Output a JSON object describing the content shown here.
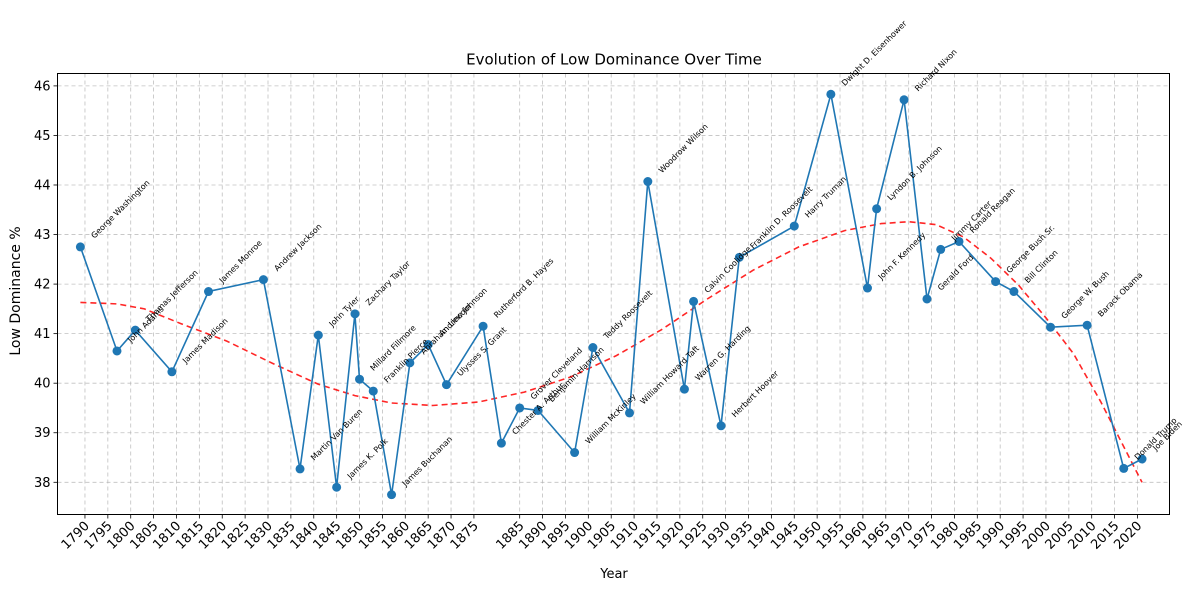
{
  "chart_data": {
    "type": "line",
    "title": "Evolution of  Low Dominance Over Time",
    "xlabel": "Year",
    "ylabel": "Low Dominance %",
    "xlim": [
      1784,
      2027
    ],
    "ylim": [
      37.35,
      46.25
    ],
    "xticks": [
      1790,
      1795,
      1800,
      1805,
      1810,
      1815,
      1820,
      1825,
      1830,
      1835,
      1840,
      1845,
      1850,
      1855,
      1860,
      1865,
      1870,
      1875,
      1885,
      1890,
      1895,
      1900,
      1905,
      1910,
      1915,
      1920,
      1925,
      1930,
      1935,
      1940,
      1945,
      1950,
      1955,
      1960,
      1965,
      1970,
      1975,
      1980,
      1985,
      1990,
      1995,
      2000,
      2005,
      2010,
      2015,
      2020
    ],
    "yticks": [
      38,
      39,
      40,
      41,
      42,
      43,
      44,
      45,
      46
    ],
    "grid": true,
    "series": [
      {
        "style": "line-markers",
        "color": "#1f77b4",
        "points": [
          {
            "x": 1789,
            "y": 42.75,
            "label": "George Washington"
          },
          {
            "x": 1797,
            "y": 40.65,
            "label": "John Adams"
          },
          {
            "x": 1801,
            "y": 41.07,
            "label": "Thomas Jefferson"
          },
          {
            "x": 1809,
            "y": 40.23,
            "label": "James Madison"
          },
          {
            "x": 1817,
            "y": 41.85,
            "label": "James Monroe"
          },
          {
            "x": 1829,
            "y": 42.09,
            "label": "Andrew Jackson"
          },
          {
            "x": 1837,
            "y": 38.27,
            "label": "Martin Van Buren"
          },
          {
            "x": 1841,
            "y": 40.97,
            "label": "John Tyler"
          },
          {
            "x": 1845,
            "y": 37.9,
            "label": "James K. Polk"
          },
          {
            "x": 1849,
            "y": 41.4,
            "label": "Zachary Taylor"
          },
          {
            "x": 1850,
            "y": 40.08,
            "label": "Millard Fillmore"
          },
          {
            "x": 1853,
            "y": 39.84,
            "label": "Franklin Pierce"
          },
          {
            "x": 1857,
            "y": 37.75,
            "label": "James Buchanan"
          },
          {
            "x": 1861,
            "y": 40.41,
            "label": "Abraham Lincoln"
          },
          {
            "x": 1865,
            "y": 40.78,
            "label": "Andrew Johnson"
          },
          {
            "x": 1869,
            "y": 39.97,
            "label": "Ulysses S. Grant"
          },
          {
            "x": 1877,
            "y": 41.15,
            "label": "Rutherford B. Hayes"
          },
          {
            "x": 1881,
            "y": 38.79,
            "label": "Chester A. Arthur"
          },
          {
            "x": 1885,
            "y": 39.5,
            "label": "Grover Cleveland"
          },
          {
            "x": 1889,
            "y": 39.45,
            "label": "Benjamin Harrison"
          },
          {
            "x": 1897,
            "y": 38.6,
            "label": "William McKinley"
          },
          {
            "x": 1901,
            "y": 40.72,
            "label": "Teddy Roosevelt"
          },
          {
            "x": 1909,
            "y": 39.4,
            "label": "William Howard Taft"
          },
          {
            "x": 1913,
            "y": 44.07,
            "label": "Woodrow Wilson"
          },
          {
            "x": 1921,
            "y": 39.88,
            "label": "Warren G. Harding"
          },
          {
            "x": 1923,
            "y": 41.65,
            "label": "Calvin Coolidge"
          },
          {
            "x": 1929,
            "y": 39.14,
            "label": "Herbert Hoover"
          },
          {
            "x": 1933,
            "y": 42.54,
            "label": "Franklin D. Roosevelt"
          },
          {
            "x": 1945,
            "y": 43.17,
            "label": "Harry Truman"
          },
          {
            "x": 1953,
            "y": 45.83,
            "label": "Dwight D. Eisenhower"
          },
          {
            "x": 1961,
            "y": 41.92,
            "label": "John F. Kennedy"
          },
          {
            "x": 1963,
            "y": 43.52,
            "label": "Lyndon B. Johnson"
          },
          {
            "x": 1969,
            "y": 45.72,
            "label": "Richard Nixon"
          },
          {
            "x": 1974,
            "y": 41.7,
            "label": "Gerald Ford"
          },
          {
            "x": 1977,
            "y": 42.7,
            "label": "Jimmy Carter"
          },
          {
            "x": 1981,
            "y": 42.86,
            "label": "Ronald Reagan"
          },
          {
            "x": 1989,
            "y": 42.05,
            "label": "George Bush Sr."
          },
          {
            "x": 1993,
            "y": 41.85,
            "label": "Bill Clinton"
          },
          {
            "x": 2001,
            "y": 41.13,
            "label": "George W. Bush"
          },
          {
            "x": 2009,
            "y": 41.17,
            "label": "Barack Obama"
          },
          {
            "x": 2017,
            "y": 38.28,
            "label": "Donald Trump"
          },
          {
            "x": 2021,
            "y": 38.47,
            "label": "Joe Biden"
          }
        ]
      },
      {
        "style": "dashed-trend",
        "color": "#ff0000",
        "points": [
          {
            "x": 1789,
            "y": 41.63
          },
          {
            "x": 1797,
            "y": 41.6
          },
          {
            "x": 1803,
            "y": 41.5
          },
          {
            "x": 1811,
            "y": 41.2
          },
          {
            "x": 1821,
            "y": 40.85
          },
          {
            "x": 1831,
            "y": 40.4
          },
          {
            "x": 1841,
            "y": 39.98
          },
          {
            "x": 1849,
            "y": 39.75
          },
          {
            "x": 1857,
            "y": 39.6
          },
          {
            "x": 1866,
            "y": 39.55
          },
          {
            "x": 1876,
            "y": 39.62
          },
          {
            "x": 1886,
            "y": 39.82
          },
          {
            "x": 1896,
            "y": 40.12
          },
          {
            "x": 1906,
            "y": 40.55
          },
          {
            "x": 1916,
            "y": 41.08
          },
          {
            "x": 1926,
            "y": 41.7
          },
          {
            "x": 1936,
            "y": 42.28
          },
          {
            "x": 1946,
            "y": 42.75
          },
          {
            "x": 1956,
            "y": 43.08
          },
          {
            "x": 1964,
            "y": 43.22
          },
          {
            "x": 1970,
            "y": 43.26
          },
          {
            "x": 1976,
            "y": 43.2
          },
          {
            "x": 1982,
            "y": 42.95
          },
          {
            "x": 1988,
            "y": 42.52
          },
          {
            "x": 1994,
            "y": 41.98
          },
          {
            "x": 2000,
            "y": 41.32
          },
          {
            "x": 2006,
            "y": 40.6
          },
          {
            "x": 2012,
            "y": 39.62
          },
          {
            "x": 2017,
            "y": 38.72
          },
          {
            "x": 2021,
            "y": 38.0
          }
        ]
      }
    ]
  }
}
